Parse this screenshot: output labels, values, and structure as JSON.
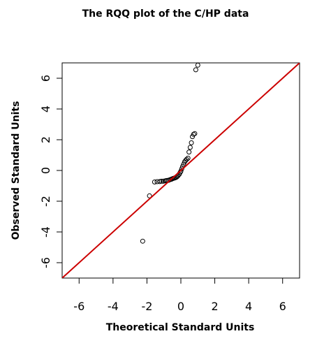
{
  "chart_data": {
    "type": "scatter",
    "title": "The RQQ plot of the C/HP data",
    "xlabel": "Theoretical Standard Units",
    "ylabel": "Observed Standard Units",
    "xlim": [
      -7,
      7
    ],
    "ylim": [
      -7,
      7
    ],
    "x_ticks": [
      -6,
      -4,
      -2,
      0,
      2,
      4,
      6
    ],
    "y_ticks": [
      -6,
      -4,
      -2,
      0,
      2,
      4,
      6
    ],
    "x_tick_labels": [
      "-6",
      "-4",
      "-2",
      "0",
      "2",
      "4",
      "6"
    ],
    "y_tick_labels": [
      "-6",
      "-4",
      "-2",
      "0",
      "2",
      "4",
      "6"
    ],
    "grid": false,
    "point_color": "#000000",
    "reference_line": {
      "type": "identity",
      "slope": 1,
      "intercept": 0,
      "color": "#cc0000"
    },
    "points": [
      {
        "x": -2.25,
        "y": -4.6
      },
      {
        "x": -1.85,
        "y": -1.65
      },
      {
        "x": -1.55,
        "y": -0.75
      },
      {
        "x": -1.4,
        "y": -0.73
      },
      {
        "x": -1.25,
        "y": -0.72
      },
      {
        "x": -1.15,
        "y": -0.7
      },
      {
        "x": -1.05,
        "y": -0.7
      },
      {
        "x": -0.95,
        "y": -0.68
      },
      {
        "x": -0.87,
        "y": -0.66
      },
      {
        "x": -0.8,
        "y": -0.65
      },
      {
        "x": -0.72,
        "y": -0.64
      },
      {
        "x": -0.65,
        "y": -0.6
      },
      {
        "x": -0.58,
        "y": -0.58
      },
      {
        "x": -0.52,
        "y": -0.55
      },
      {
        "x": -0.46,
        "y": -0.52
      },
      {
        "x": -0.4,
        "y": -0.5
      },
      {
        "x": -0.34,
        "y": -0.48
      },
      {
        "x": -0.28,
        "y": -0.45
      },
      {
        "x": -0.22,
        "y": -0.4
      },
      {
        "x": -0.16,
        "y": -0.33
      },
      {
        "x": -0.1,
        "y": -0.25
      },
      {
        "x": -0.05,
        "y": -0.15
      },
      {
        "x": 0.0,
        "y": -0.05
      },
      {
        "x": 0.05,
        "y": 0.1
      },
      {
        "x": 0.1,
        "y": 0.25
      },
      {
        "x": 0.16,
        "y": 0.4
      },
      {
        "x": 0.22,
        "y": 0.55
      },
      {
        "x": 0.28,
        "y": 0.65
      },
      {
        "x": 0.34,
        "y": 0.72
      },
      {
        "x": 0.42,
        "y": 0.8
      },
      {
        "x": 0.48,
        "y": 1.2
      },
      {
        "x": 0.55,
        "y": 1.5
      },
      {
        "x": 0.62,
        "y": 1.8
      },
      {
        "x": 0.68,
        "y": 2.2
      },
      {
        "x": 0.75,
        "y": 2.35
      },
      {
        "x": 0.82,
        "y": 2.4
      },
      {
        "x": 0.88,
        "y": 6.55
      },
      {
        "x": 1.0,
        "y": 6.85
      }
    ]
  }
}
